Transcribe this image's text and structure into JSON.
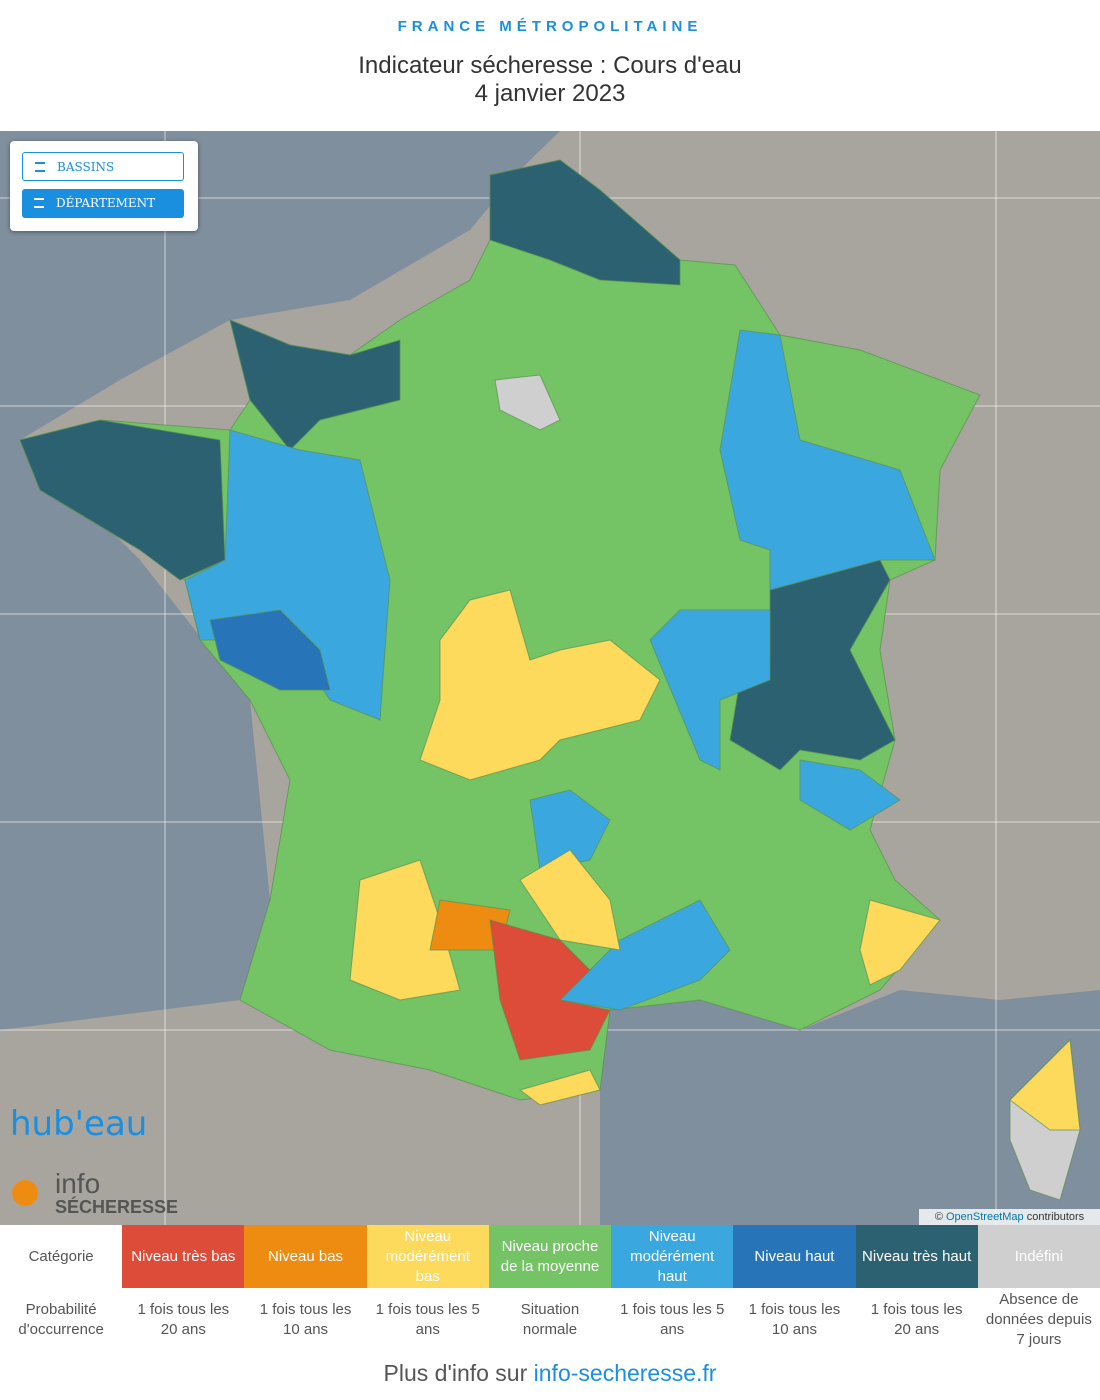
{
  "header": {
    "supertitle": "FRANCE MÉTROPOLITAINE",
    "title": "Indicateur sécheresse : Cours d'eau",
    "date": "4 janvier 2023"
  },
  "controls": [
    "BASSINS VERSANTS",
    "DÉPARTEMENT"
  ],
  "attribution": {
    "symbol": "©",
    "link": "OpenStreetMap",
    "text": "contributors"
  },
  "logos": {
    "hubeau": "hub'eau",
    "info": "info",
    "secheresse": "SÉCHERESSE"
  },
  "legend": {
    "row_labels": [
      "Catégorie",
      "Probabilité d'occurrence"
    ],
    "levels": [
      {
        "label": "Niveau très bas",
        "color": "#dd4b39",
        "occurrence": "1 fois tous les 20 ans"
      },
      {
        "label": "Niveau bas",
        "color": "#ee8c11",
        "occurrence": "1 fois tous les 10 ans"
      },
      {
        "label": "Niveau modérément bas",
        "color": "#fdd95c",
        "occurrence": "1 fois tous les 5 ans"
      },
      {
        "label": "Niveau proche de la moyenne",
        "color": "#74c465",
        "occurrence": "Situation normale"
      },
      {
        "label": "Niveau modérément haut",
        "color": "#3aa8de",
        "occurrence": "1 fois tous les 5 ans"
      },
      {
        "label": "Niveau haut",
        "color": "#2775b8",
        "occurrence": "1 fois tous les 10 ans"
      },
      {
        "label": "Niveau très haut",
        "color": "#2c6172",
        "occurrence": "1 fois tous les 20 ans"
      },
      {
        "label": "Indéfini",
        "color": "#cfcfcf",
        "occurrence": "Absence de données depuis 7 jours"
      }
    ]
  },
  "footer": {
    "text": "Plus d'info sur",
    "link": "info-secheresse.fr"
  }
}
